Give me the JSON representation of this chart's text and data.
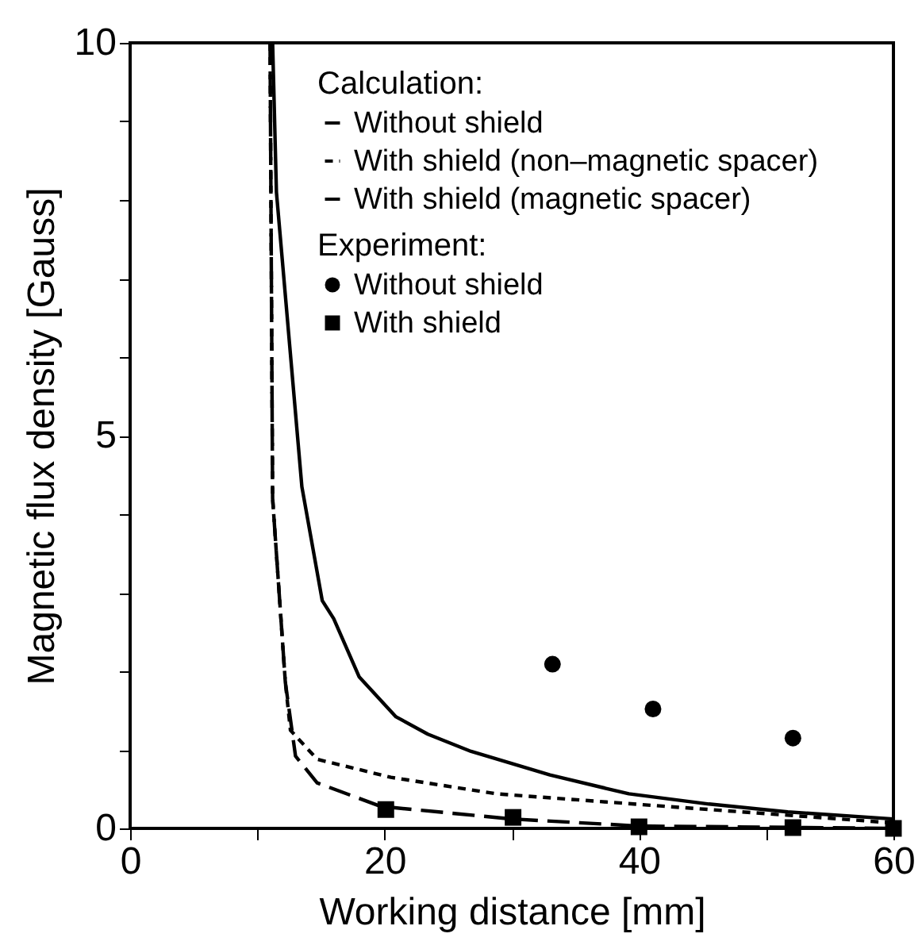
{
  "chart_data": {
    "type": "line",
    "xlabel": "Working distance [mm]",
    "ylabel": "Magnetic flux density [Gauss]",
    "legend_title": "Calculation:",
    "annotations": [
      "Experiment:"
    ],
    "xlim": [
      0,
      60
    ],
    "ylim": [
      0,
      10
    ],
    "xticks": [
      0,
      {
        "value": 10,
        "label": null
      },
      20,
      {
        "value": 30,
        "label": null
      },
      40,
      {
        "value": 50,
        "label": null
      },
      60
    ],
    "yticks": [
      0,
      {
        "value": 1,
        "label": null
      },
      {
        "value": 2,
        "label": null
      },
      {
        "value": 3,
        "label": null
      },
      {
        "value": 4,
        "label": null
      },
      5,
      {
        "value": 6,
        "label": null
      },
      {
        "value": 7,
        "label": null
      },
      {
        "value": 8,
        "label": null
      },
      {
        "value": 9,
        "label": null
      },
      10
    ],
    "legend": "top right",
    "series": [
      {
        "name": "Without shield",
        "line_style": "solid",
        "color": "#000000",
        "x": [
          11.2,
          11.5,
          13.5,
          15.1,
          16.0,
          18.0,
          20.9,
          23.4,
          26.8,
          33.0,
          39.2,
          45.5,
          51.7,
          60
        ],
        "values": [
          10,
          8.1,
          4.35,
          2.9,
          2.67,
          1.93,
          1.42,
          1.2,
          0.98,
          0.68,
          0.44,
          0.31,
          0.21,
          0.12
        ]
      },
      {
        "name": "With shield (non–magnetic spacer)",
        "line_style": "dotted",
        "color": "#000000",
        "x": [
          11.0,
          11.2,
          12.2,
          12.6,
          14.7,
          20.5,
          28.8,
          41.3,
          60
        ],
        "values": [
          10,
          4.2,
          1.86,
          1.25,
          0.88,
          0.65,
          0.44,
          0.29,
          0.07
        ]
      },
      {
        "name": "With shield (magnetic spacer)",
        "line_style": "dashed",
        "color": "#000000",
        "x": [
          11.0,
          11.2,
          12.2,
          13.0,
          14.7,
          19.7,
          30,
          40,
          60
        ],
        "values": [
          10,
          4.2,
          1.86,
          0.92,
          0.58,
          0.28,
          0.12,
          0.03,
          0.0
        ]
      },
      {
        "name": "Without shield",
        "type": "scatter",
        "marker": "circle",
        "color": "#000000",
        "x": [
          33.2,
          41.1,
          52.1
        ],
        "values": [
          2.09,
          1.52,
          1.15
        ]
      },
      {
        "name": "With shield",
        "type": "scatter",
        "marker": "square",
        "color": "#000000",
        "x": [
          20.1,
          30.1,
          40,
          52.1,
          60
        ],
        "values": [
          0.24,
          0.14,
          0.02,
          0.01,
          0.0
        ]
      }
    ]
  }
}
